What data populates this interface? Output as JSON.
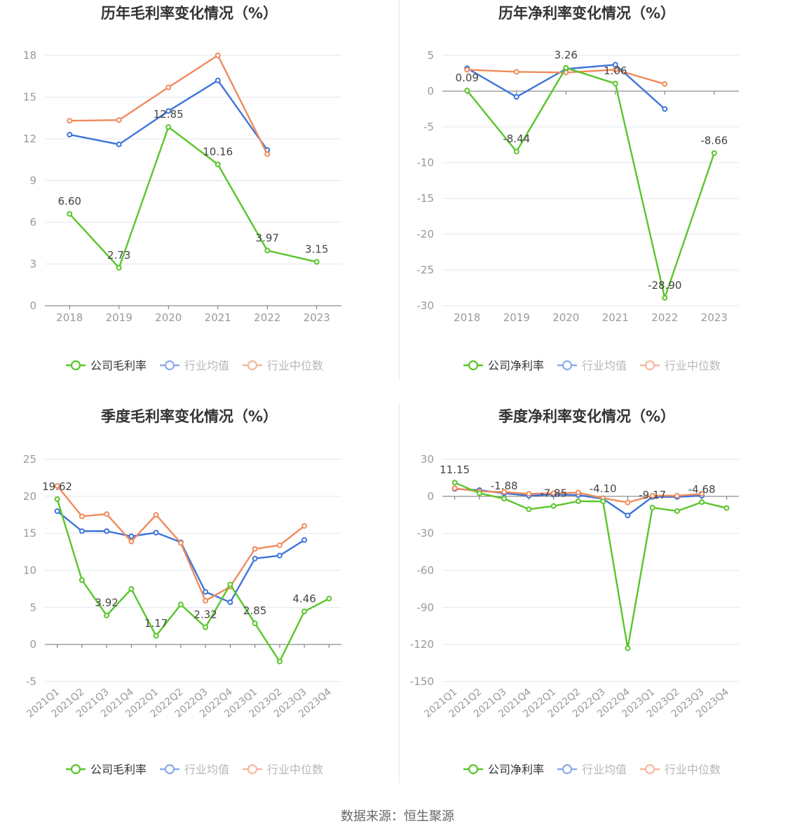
{
  "colors": {
    "company": "#5ac52a",
    "industry_avg": "#3d74d9",
    "industry_median": "#f08a5d",
    "axis": "#6e7079",
    "grid": "#e0e6f1",
    "label": "#444444",
    "tick": "#999999"
  },
  "source": "数据来源：恒生聚源",
  "chart_data": [
    {
      "type": "line",
      "title": "历年毛利率变化情况（%）",
      "categories": [
        "2018",
        "2019",
        "2020",
        "2021",
        "2022",
        "2023"
      ],
      "ylim": [
        0,
        18
      ],
      "yticks": [
        0,
        3,
        6,
        9,
        12,
        15,
        18
      ],
      "legend": [
        "公司毛利率",
        "行业均值",
        "行业中位数"
      ],
      "series": [
        {
          "name": "公司毛利率",
          "role": "company",
          "values": [
            6.6,
            2.73,
            12.85,
            10.16,
            3.97,
            3.15
          ],
          "labels": [
            "6.60",
            "2.73",
            "12.85",
            "10.16",
            "3.97",
            "3.15"
          ]
        },
        {
          "name": "行业均值",
          "role": "industry_avg",
          "values": [
            12.3,
            11.6,
            14.0,
            16.2,
            11.2,
            null
          ]
        },
        {
          "name": "行业中位数",
          "role": "industry_median",
          "values": [
            13.3,
            13.35,
            15.7,
            18.0,
            10.9,
            null
          ]
        }
      ]
    },
    {
      "type": "line",
      "title": "历年净利率变化情况（%）",
      "categories": [
        "2018",
        "2019",
        "2020",
        "2021",
        "2022",
        "2023"
      ],
      "ylim": [
        -30,
        5
      ],
      "yticks": [
        -30,
        -25,
        -20,
        -15,
        -10,
        -5,
        0,
        5
      ],
      "legend": [
        "公司净利率",
        "行业均值",
        "行业中位数"
      ],
      "series": [
        {
          "name": "公司净利率",
          "role": "company",
          "values": [
            0.09,
            -8.44,
            3.26,
            1.06,
            -28.9,
            -8.66
          ],
          "labels": [
            "0.09",
            "-8.44",
            "3.26",
            "1.06",
            "-28.90",
            "-8.66"
          ]
        },
        {
          "name": "行业均值",
          "role": "industry_avg",
          "values": [
            3.2,
            -0.8,
            3.1,
            3.7,
            -2.5,
            null
          ]
        },
        {
          "name": "行业中位数",
          "role": "industry_median",
          "values": [
            3.0,
            2.7,
            2.6,
            3.0,
            1.0,
            null
          ]
        }
      ]
    },
    {
      "type": "line",
      "title": "季度毛利率变化情况（%）",
      "categories": [
        "2021Q1",
        "2021Q2",
        "2021Q3",
        "2021Q4",
        "2022Q1",
        "2022Q2",
        "2022Q3",
        "2022Q4",
        "2023Q1",
        "2023Q2",
        "2023Q3",
        "2023Q4"
      ],
      "ylim": [
        -5,
        25
      ],
      "yticks": [
        -5,
        0,
        5,
        10,
        15,
        20,
        25
      ],
      "legend": [
        "公司毛利率",
        "行业均值",
        "行业中位数"
      ],
      "series": [
        {
          "name": "公司毛利率",
          "role": "company",
          "values": [
            19.62,
            8.7,
            3.92,
            7.5,
            1.17,
            5.4,
            2.32,
            8.1,
            2.85,
            -2.3,
            4.46,
            6.2
          ],
          "labels": [
            "19.62",
            null,
            "3.92",
            null,
            "1.17",
            null,
            "2.32",
            null,
            "2.85",
            null,
            "4.46",
            null
          ]
        },
        {
          "name": "行业均值",
          "role": "industry_avg",
          "values": [
            18.0,
            15.3,
            15.3,
            14.6,
            15.1,
            13.8,
            7.1,
            5.7,
            11.6,
            12.0,
            14.1,
            null
          ]
        },
        {
          "name": "行业中位数",
          "role": "industry_median",
          "values": [
            21.4,
            17.3,
            17.6,
            13.9,
            17.5,
            13.7,
            5.9,
            7.8,
            12.9,
            13.4,
            16.0,
            null
          ]
        }
      ]
    },
    {
      "type": "line",
      "title": "季度净利率变化情况（%）",
      "categories": [
        "2021Q1",
        "2021Q2",
        "2021Q3",
        "2021Q4",
        "2022Q1",
        "2022Q2",
        "2022Q3",
        "2022Q4",
        "2023Q1",
        "2023Q2",
        "2023Q3",
        "2023Q4"
      ],
      "ylim": [
        -150,
        30
      ],
      "yticks": [
        -150,
        -120,
        -90,
        -60,
        -30,
        0,
        30
      ],
      "legend": [
        "公司净利率",
        "行业均值",
        "行业中位数"
      ],
      "series": [
        {
          "name": "公司净利率",
          "role": "company",
          "values": [
            11.15,
            2.5,
            -1.88,
            -10.5,
            -7.85,
            -4.0,
            -4.1,
            -123.0,
            -9.17,
            -12.0,
            -4.68,
            -9.5
          ],
          "labels": [
            "11.15",
            null,
            "-1.88",
            null,
            "-7.85",
            null,
            "-4.10",
            null,
            "-9.17",
            null,
            "-4.68",
            null
          ]
        },
        {
          "name": "行业均值",
          "role": "industry_avg",
          "values": [
            6.0,
            5.0,
            2.5,
            0.5,
            1.5,
            1.0,
            -2.0,
            -15.5,
            -0.5,
            -0.5,
            0.5,
            null
          ]
        },
        {
          "name": "行业中位数",
          "role": "industry_median",
          "values": [
            6.5,
            4.0,
            3.5,
            2.0,
            2.5,
            3.0,
            -1.5,
            -5.0,
            0.5,
            0.5,
            2.0,
            null
          ]
        }
      ]
    }
  ]
}
